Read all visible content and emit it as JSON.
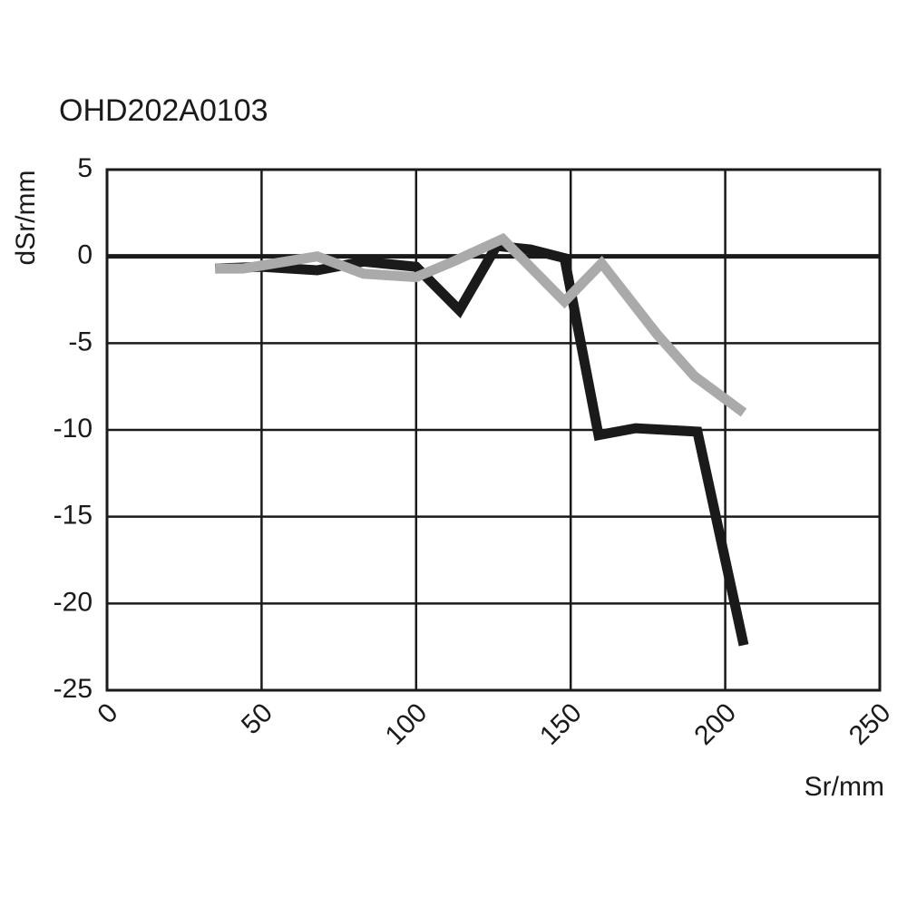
{
  "chart_data": {
    "type": "line",
    "title": "OHD202A0103",
    "xlabel": "Sr/mm",
    "ylabel": "dSr/mm",
    "xlim": [
      0,
      250
    ],
    "ylim": [
      -25,
      5
    ],
    "xticks": [
      0,
      50,
      100,
      150,
      200,
      250
    ],
    "yticks": [
      5,
      0,
      -5,
      -10,
      -15,
      -20,
      -25
    ],
    "xtick_labels": [
      "0",
      "50",
      "100",
      "150",
      "200",
      "250"
    ],
    "ytick_labels": [
      "5",
      "0",
      "-5",
      "-10",
      "-15",
      "-20",
      "-25"
    ],
    "grid": true,
    "series": [
      {
        "color": "#1a1a1a",
        "x": [
          35,
          50,
          68,
          83,
          100,
          114,
          126,
          137,
          148,
          159,
          171,
          191,
          206
        ],
        "y": [
          -0.7,
          -0.6,
          -0.8,
          -0.3,
          -0.6,
          -3.1,
          0.6,
          0.4,
          -0.1,
          -10.3,
          -9.9,
          -10.1,
          -22.4
        ]
      },
      {
        "color": "#aaaaaa",
        "x": [
          35,
          44,
          68,
          83,
          100,
          112,
          128,
          148,
          160,
          178,
          190,
          206
        ],
        "y": [
          -0.7,
          -0.7,
          0.0,
          -1.0,
          -1.2,
          -0.3,
          1.0,
          -2.6,
          -0.4,
          -4.5,
          -6.9,
          -9.0
        ]
      }
    ]
  }
}
